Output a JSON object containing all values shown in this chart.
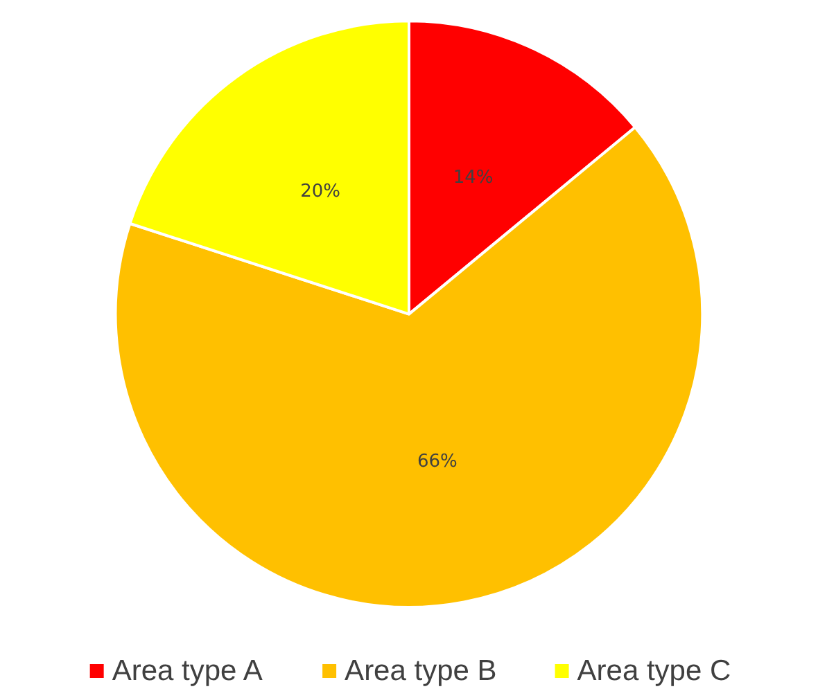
{
  "chart_data": {
    "type": "pie",
    "categories": [
      "Area type A",
      "Area type B",
      "Area type C"
    ],
    "values": [
      14,
      66,
      20
    ],
    "colors": [
      "#ff0000",
      "#ffc000",
      "#ffff00"
    ],
    "value_labels": [
      "14%",
      "66%",
      "20%"
    ],
    "legend": "bottom"
  }
}
